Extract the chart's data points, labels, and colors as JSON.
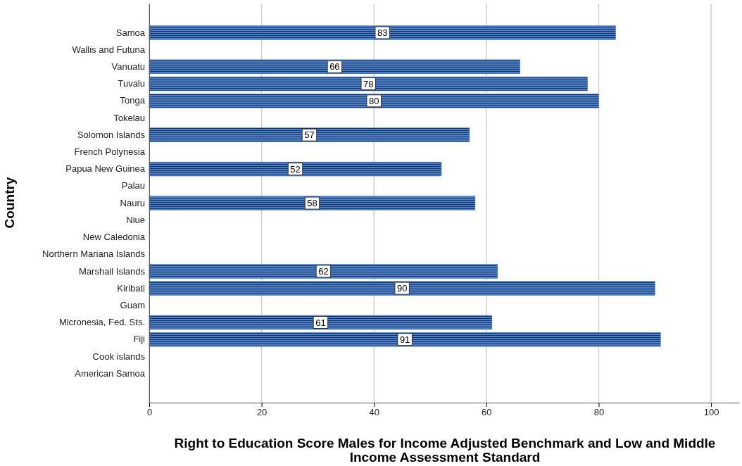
{
  "chart_data": {
    "type": "bar",
    "orientation": "horizontal",
    "xlabel": "Right to Education Score Males for Income Adjusted Benchmark and Low and Middle Income Assessment Standard",
    "ylabel": "Country",
    "categories": [
      "Samoa",
      "Wallis and Futuna",
      "Vanuatu",
      "Tuvalu",
      "Tonga",
      "Tokelau",
      "Solomon Islands",
      "French Polynesia",
      "Papua New Guinea",
      "Palau",
      "Nauru",
      "Niue",
      "New Caledonia",
      "Northern Mariana Islands",
      "Marshall Islands",
      "Kiribati",
      "Guam",
      "Micronesia, Fed. Sts.",
      "Fiji",
      "Cook islands",
      "American Samoa"
    ],
    "values": [
      83,
      null,
      66,
      78,
      80,
      null,
      57,
      null,
      52,
      null,
      58,
      null,
      null,
      null,
      62,
      90,
      null,
      61,
      91,
      null,
      null
    ],
    "color": "#4a7fc9",
    "data_labels": true,
    "xlim": [
      0,
      105
    ],
    "xticks": [
      0,
      20,
      40,
      60,
      80,
      100
    ],
    "grid": "x"
  }
}
